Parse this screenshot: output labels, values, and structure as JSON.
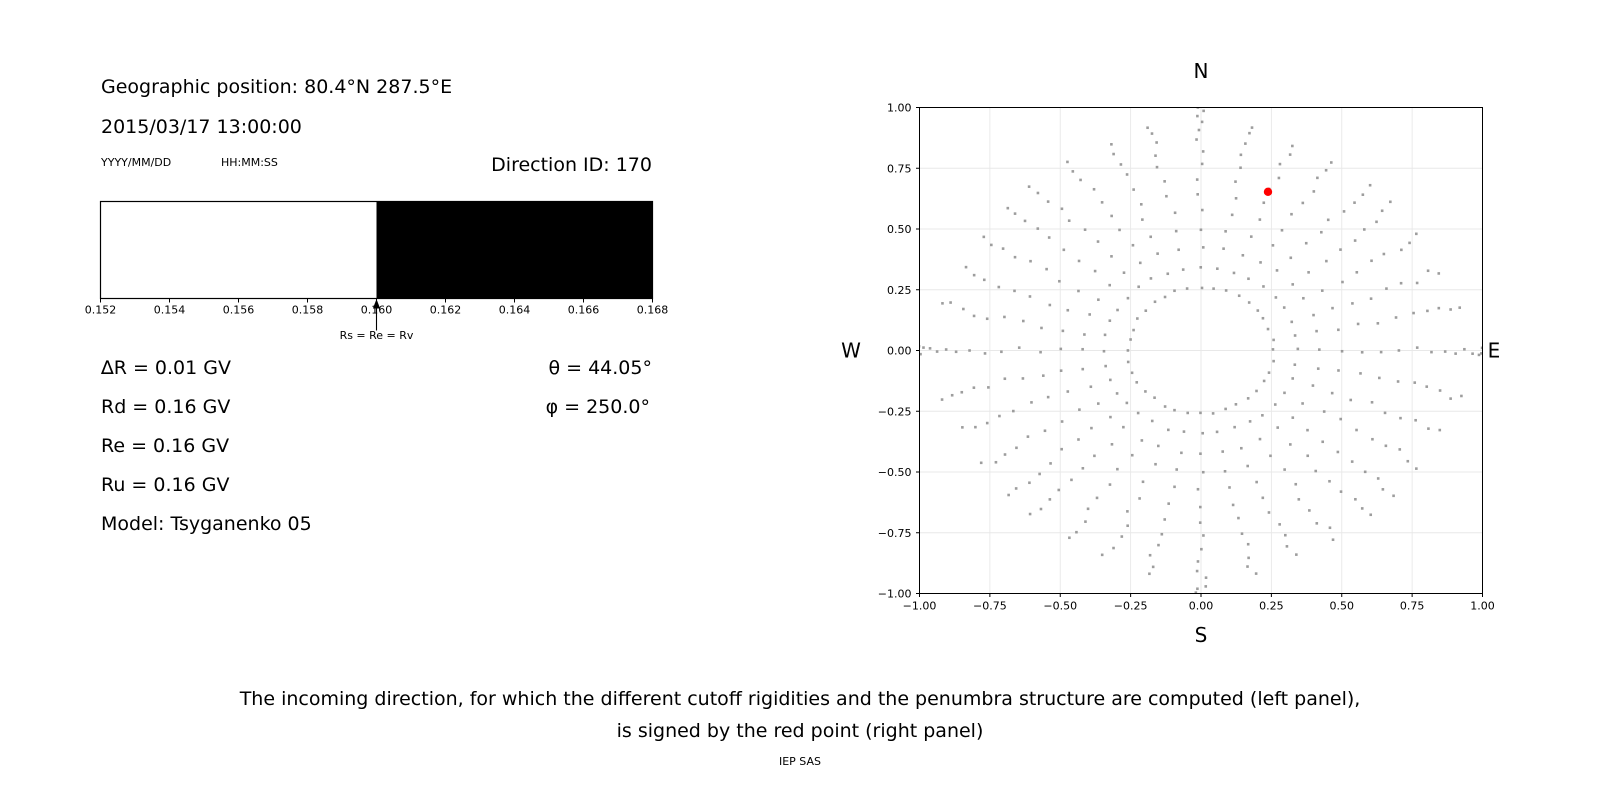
{
  "header": {
    "geo_position": "Geographic position: 80.4°N 287.5°E",
    "datetime": "2015/03/17 13:00:00",
    "date_format": "YYYY/MM/DD",
    "time_format": "HH:MM:SS",
    "direction_id": "Direction ID: 170"
  },
  "parameters": {
    "delta_r": "∆R = 0.01 GV",
    "rd": "Rd = 0.16 GV",
    "re": "Re = 0.16 GV",
    "ru": "Ru = 0.16 GV",
    "model": "Model: Tsyganenko 05",
    "theta": "θ = 44.05°",
    "phi": "φ = 250.0°"
  },
  "caption": {
    "line1": "The incoming direction, for which the different cutoff rigidities and the penumbra structure are computed (left panel),",
    "line2": "is signed by the red point (right panel)",
    "credit": "IEP SAS"
  },
  "chart_data": [
    {
      "type": "bar",
      "name": "penumbra-structure",
      "xlim": [
        0.152,
        0.168
      ],
      "x_tick_values": [
        0.152,
        0.154,
        0.156,
        0.158,
        0.16,
        0.162,
        0.164,
        0.166,
        0.168
      ],
      "x_tick_labels": [
        "0.152",
        "0.154",
        "0.156",
        "0.158",
        "0.160",
        "0.162",
        "0.164",
        "0.166",
        "0.168"
      ],
      "units": "GV",
      "segments": [
        {
          "from": 0.152,
          "to": 0.16,
          "color": "#ffffff",
          "meaning": "allowed"
        },
        {
          "from": 0.16,
          "to": 0.168,
          "color": "#000000",
          "meaning": "forbidden"
        }
      ],
      "arrow": {
        "x": 0.16,
        "label": "Rs = Re = Rv"
      }
    },
    {
      "type": "scatter",
      "name": "incoming-direction-grid",
      "direction_labels": {
        "top": "N",
        "bottom": "S",
        "left": "W",
        "right": "E"
      },
      "xlim": [
        -1,
        1
      ],
      "ylim": [
        -1,
        1
      ],
      "grid": true,
      "grid_color": "#e8e8e8",
      "x_tick_values": [
        -1,
        -0.75,
        -0.5,
        -0.25,
        0,
        0.25,
        0.5,
        0.75,
        1
      ],
      "x_tick_labels": [
        "−1.00",
        "−0.75",
        "−0.50",
        "−0.25",
        "0.00",
        "0.25",
        "0.50",
        "0.75",
        "1.00"
      ],
      "y_tick_values": [
        1,
        0.75,
        0.5,
        0.25,
        0,
        -0.25,
        -0.5,
        -0.75,
        -1
      ],
      "y_tick_labels": [
        "1.00",
        "0.75",
        "0.50",
        "0.25",
        "0.00",
        "−0.25",
        "−0.50",
        "−0.75",
        "−1.00"
      ],
      "dot_color": "#8c8c8c",
      "direction_grid": {
        "azimuth_step_deg": 10,
        "zenith_min_deg": 15,
        "zenith_step_deg": 5,
        "zenith_max_by_cardinal_offset_deg": {
          "0": 90,
          "10": 71,
          "20": 68,
          "30": 66,
          "40": 65
        },
        "radius_mapping": "r = sin(zenith)",
        "swirl_deg": 3.5
      },
      "red_point": {
        "x": 0.238,
        "y": 0.653,
        "zenith_deg": 44.05,
        "azimuth_deg": 250.0,
        "color": "#ff0000"
      }
    }
  ]
}
